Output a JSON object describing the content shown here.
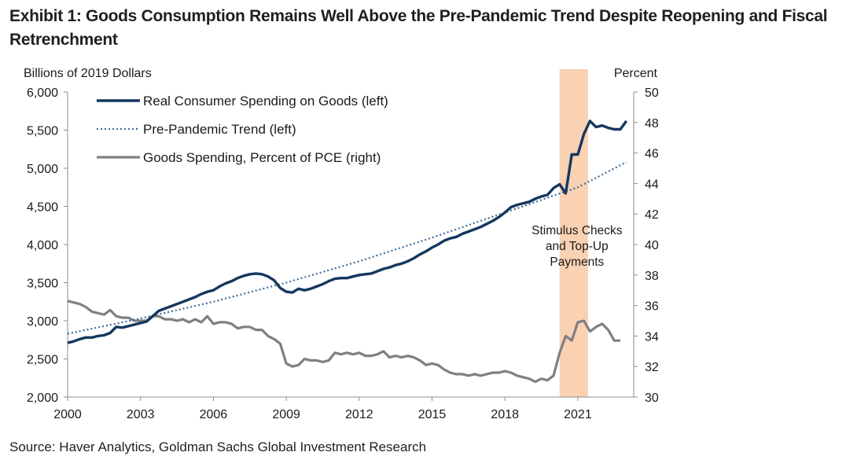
{
  "title": "Exhibit 1: Goods Consumption Remains Well Above the Pre-Pandemic Trend Despite Reopening and Fiscal Retrenchment",
  "source": "Source: Haver Analytics, Goldman Sachs Global Investment Research",
  "chart_data": {
    "type": "line",
    "ylabel_left": "Billions of 2019 Dollars",
    "ylabel_right": "Percent",
    "xlim": [
      2000,
      2023.3
    ],
    "ylim_left": [
      2000,
      6000
    ],
    "ylim_right": [
      30,
      50
    ],
    "x_ticks": [
      "2000",
      "2003",
      "2006",
      "2009",
      "2012",
      "2015",
      "2018",
      "2021"
    ],
    "y_left_ticks": [
      "6,000",
      "5,500",
      "5,000",
      "4,500",
      "4,000",
      "3,500",
      "3,000",
      "2,500",
      "2,000"
    ],
    "y_right_ticks": [
      "50",
      "48",
      "46",
      "44",
      "42",
      "40",
      "38",
      "36",
      "34",
      "32",
      "30"
    ],
    "grid": false,
    "legend_position": "top-left",
    "colors": {
      "goods": "#15375f",
      "trend": "#3f6d96",
      "pct": "#808080",
      "band": "#f8c9a6"
    },
    "annotation": {
      "lines": [
        "Stimulus Checks",
        "and Top-Up",
        "Payments"
      ],
      "band_x": [
        2020.25,
        2021.42
      ]
    },
    "series": [
      {
        "name": "Real Consumer Spending on Goods (left)",
        "axis": "left",
        "style": "solid",
        "points": [
          [
            2000.0,
            2710
          ],
          [
            2000.25,
            2730
          ],
          [
            2000.5,
            2760
          ],
          [
            2000.75,
            2780
          ],
          [
            2001.0,
            2780
          ],
          [
            2001.25,
            2800
          ],
          [
            2001.5,
            2810
          ],
          [
            2001.75,
            2840
          ],
          [
            2002.0,
            2920
          ],
          [
            2002.25,
            2910
          ],
          [
            2002.5,
            2930
          ],
          [
            2002.75,
            2950
          ],
          [
            2003.0,
            2970
          ],
          [
            2003.25,
            2990
          ],
          [
            2003.5,
            3060
          ],
          [
            2003.75,
            3130
          ],
          [
            2004.0,
            3160
          ],
          [
            2004.25,
            3190
          ],
          [
            2004.5,
            3220
          ],
          [
            2004.75,
            3250
          ],
          [
            2005.0,
            3280
          ],
          [
            2005.25,
            3310
          ],
          [
            2005.5,
            3350
          ],
          [
            2005.75,
            3380
          ],
          [
            2006.0,
            3400
          ],
          [
            2006.25,
            3450
          ],
          [
            2006.5,
            3490
          ],
          [
            2006.75,
            3520
          ],
          [
            2007.0,
            3560
          ],
          [
            2007.25,
            3590
          ],
          [
            2007.5,
            3610
          ],
          [
            2007.75,
            3620
          ],
          [
            2008.0,
            3610
          ],
          [
            2008.25,
            3580
          ],
          [
            2008.5,
            3530
          ],
          [
            2008.75,
            3430
          ],
          [
            2009.0,
            3380
          ],
          [
            2009.25,
            3370
          ],
          [
            2009.5,
            3420
          ],
          [
            2009.75,
            3400
          ],
          [
            2010.0,
            3420
          ],
          [
            2010.25,
            3450
          ],
          [
            2010.5,
            3480
          ],
          [
            2010.75,
            3520
          ],
          [
            2011.0,
            3550
          ],
          [
            2011.25,
            3560
          ],
          [
            2011.5,
            3560
          ],
          [
            2011.75,
            3580
          ],
          [
            2012.0,
            3600
          ],
          [
            2012.25,
            3610
          ],
          [
            2012.5,
            3620
          ],
          [
            2012.75,
            3650
          ],
          [
            2013.0,
            3680
          ],
          [
            2013.25,
            3700
          ],
          [
            2013.5,
            3730
          ],
          [
            2013.75,
            3750
          ],
          [
            2014.0,
            3780
          ],
          [
            2014.25,
            3820
          ],
          [
            2014.5,
            3870
          ],
          [
            2014.75,
            3910
          ],
          [
            2015.0,
            3960
          ],
          [
            2015.25,
            4000
          ],
          [
            2015.5,
            4050
          ],
          [
            2015.75,
            4080
          ],
          [
            2016.0,
            4100
          ],
          [
            2016.25,
            4140
          ],
          [
            2016.5,
            4170
          ],
          [
            2016.75,
            4200
          ],
          [
            2017.0,
            4230
          ],
          [
            2017.25,
            4270
          ],
          [
            2017.5,
            4310
          ],
          [
            2017.75,
            4360
          ],
          [
            2018.0,
            4420
          ],
          [
            2018.25,
            4490
          ],
          [
            2018.5,
            4520
          ],
          [
            2018.75,
            4540
          ],
          [
            2019.0,
            4560
          ],
          [
            2019.25,
            4600
          ],
          [
            2019.5,
            4630
          ],
          [
            2019.75,
            4650
          ],
          [
            2020.0,
            4740
          ],
          [
            2020.25,
            4790
          ],
          [
            2020.5,
            4670
          ],
          [
            2020.75,
            5180
          ],
          [
            2021.0,
            5180
          ],
          [
            2021.25,
            5450
          ],
          [
            2021.5,
            5620
          ],
          [
            2021.75,
            5540
          ],
          [
            2022.0,
            5560
          ],
          [
            2022.25,
            5530
          ],
          [
            2022.5,
            5510
          ],
          [
            2022.75,
            5510
          ],
          [
            2023.0,
            5620
          ]
        ]
      },
      {
        "name": "Pre-Pandemic Trend  (left)",
        "axis": "left",
        "style": "dotted",
        "points": [
          [
            2000.0,
            2830
          ],
          [
            2003.0,
            3030
          ],
          [
            2006.0,
            3250
          ],
          [
            2009.0,
            3500
          ],
          [
            2012.0,
            3780
          ],
          [
            2015.0,
            4090
          ],
          [
            2018.0,
            4420
          ],
          [
            2021.0,
            4750
          ],
          [
            2023.0,
            5080
          ]
        ]
      },
      {
        "name": "Goods Spending, Percent of PCE (right)",
        "axis": "right",
        "style": "solid",
        "points": [
          [
            2000.0,
            36.3
          ],
          [
            2000.25,
            36.2
          ],
          [
            2000.5,
            36.1
          ],
          [
            2000.75,
            35.9
          ],
          [
            2001.0,
            35.6
          ],
          [
            2001.25,
            35.5
          ],
          [
            2001.5,
            35.4
          ],
          [
            2001.75,
            35.7
          ],
          [
            2002.0,
            35.3
          ],
          [
            2002.25,
            35.2
          ],
          [
            2002.5,
            35.2
          ],
          [
            2002.75,
            35.0
          ],
          [
            2003.0,
            35.0
          ],
          [
            2003.25,
            35.0
          ],
          [
            2003.5,
            35.3
          ],
          [
            2003.75,
            35.3
          ],
          [
            2004.0,
            35.1
          ],
          [
            2004.25,
            35.1
          ],
          [
            2004.5,
            35.0
          ],
          [
            2004.75,
            35.1
          ],
          [
            2005.0,
            34.9
          ],
          [
            2005.25,
            35.1
          ],
          [
            2005.5,
            34.9
          ],
          [
            2005.75,
            35.3
          ],
          [
            2006.0,
            34.8
          ],
          [
            2006.25,
            34.9
          ],
          [
            2006.5,
            34.9
          ],
          [
            2006.75,
            34.8
          ],
          [
            2007.0,
            34.5
          ],
          [
            2007.25,
            34.6
          ],
          [
            2007.5,
            34.6
          ],
          [
            2007.75,
            34.4
          ],
          [
            2008.0,
            34.4
          ],
          [
            2008.25,
            34.0
          ],
          [
            2008.5,
            33.8
          ],
          [
            2008.75,
            33.5
          ],
          [
            2009.0,
            32.2
          ],
          [
            2009.25,
            32.0
          ],
          [
            2009.5,
            32.1
          ],
          [
            2009.75,
            32.5
          ],
          [
            2010.0,
            32.4
          ],
          [
            2010.25,
            32.4
          ],
          [
            2010.5,
            32.3
          ],
          [
            2010.75,
            32.4
          ],
          [
            2011.0,
            32.9
          ],
          [
            2011.25,
            32.8
          ],
          [
            2011.5,
            32.9
          ],
          [
            2011.75,
            32.8
          ],
          [
            2012.0,
            32.9
          ],
          [
            2012.25,
            32.7
          ],
          [
            2012.5,
            32.7
          ],
          [
            2012.75,
            32.8
          ],
          [
            2013.0,
            33.0
          ],
          [
            2013.25,
            32.6
          ],
          [
            2013.5,
            32.7
          ],
          [
            2013.75,
            32.6
          ],
          [
            2014.0,
            32.7
          ],
          [
            2014.25,
            32.6
          ],
          [
            2014.5,
            32.4
          ],
          [
            2014.75,
            32.1
          ],
          [
            2015.0,
            32.2
          ],
          [
            2015.25,
            32.1
          ],
          [
            2015.5,
            31.8
          ],
          [
            2015.75,
            31.6
          ],
          [
            2016.0,
            31.5
          ],
          [
            2016.25,
            31.5
          ],
          [
            2016.5,
            31.4
          ],
          [
            2016.75,
            31.5
          ],
          [
            2017.0,
            31.4
          ],
          [
            2017.25,
            31.5
          ],
          [
            2017.5,
            31.6
          ],
          [
            2017.75,
            31.6
          ],
          [
            2018.0,
            31.7
          ],
          [
            2018.25,
            31.6
          ],
          [
            2018.5,
            31.4
          ],
          [
            2018.75,
            31.3
          ],
          [
            2019.0,
            31.2
          ],
          [
            2019.25,
            31.0
          ],
          [
            2019.5,
            31.2
          ],
          [
            2019.75,
            31.1
          ],
          [
            2020.0,
            31.4
          ],
          [
            2020.25,
            32.9
          ],
          [
            2020.5,
            34.0
          ],
          [
            2020.75,
            33.7
          ],
          [
            2021.0,
            34.9
          ],
          [
            2021.25,
            35.0
          ],
          [
            2021.5,
            34.3
          ],
          [
            2021.75,
            34.6
          ],
          [
            2022.0,
            34.8
          ],
          [
            2022.25,
            34.4
          ],
          [
            2022.5,
            33.7
          ],
          [
            2022.75,
            33.7
          ]
        ]
      }
    ]
  }
}
